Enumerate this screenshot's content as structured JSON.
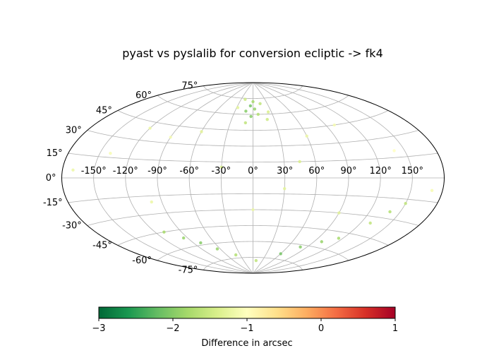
{
  "chart_data": {
    "type": "scatter",
    "projection": "aitoff",
    "title": "pyast vs pyslalib for conversion ecliptic -> fk4",
    "xlabel": "",
    "ylabel": "",
    "x_ticks": [
      "-150°",
      "-120°",
      "-90°",
      "-60°",
      "-30°",
      "0°",
      "30°",
      "60°",
      "90°",
      "120°",
      "150°"
    ],
    "y_ticks": [
      "-75°",
      "-60°",
      "-45°",
      "-30°",
      "-15°",
      "0°",
      "15°",
      "30°",
      "45°",
      "60°",
      "75°"
    ],
    "grid": true,
    "colorbar": {
      "label": "Difference in arcsec",
      "min": -3,
      "max": 1,
      "ticks": [
        "−3",
        "−2",
        "−1",
        "0",
        "1"
      ],
      "colormap": "RdYlGn_r",
      "stops": [
        "#006837",
        "#1a9850",
        "#66bd63",
        "#a6d96a",
        "#d9ef8b",
        "#ffffbf",
        "#fee08b",
        "#fdae61",
        "#f46d43",
        "#d73027",
        "#a50026"
      ]
    },
    "series": [
      {
        "points": [
          {
            "lon": 0,
            "lat": 72,
            "diff": -1.8
          },
          {
            "lon": -5,
            "lat": 68,
            "diff": -2.1
          },
          {
            "lon": -12,
            "lat": 63,
            "diff": -2.0
          },
          {
            "lon": 3,
            "lat": 65,
            "diff": -1.9
          },
          {
            "lon": 8,
            "lat": 60,
            "diff": -1.7
          },
          {
            "lon": -3,
            "lat": 58,
            "diff": -2.0
          },
          {
            "lon": 15,
            "lat": 70,
            "diff": -1.6
          },
          {
            "lon": -20,
            "lat": 74,
            "diff": -1.5
          },
          {
            "lon": -28,
            "lat": 66,
            "diff": -1.3
          },
          {
            "lon": 25,
            "lat": 62,
            "diff": -1.4
          },
          {
            "lon": 20,
            "lat": 55,
            "diff": -1.5
          },
          {
            "lon": -10,
            "lat": 52,
            "diff": -1.6
          },
          {
            "lon": -120,
            "lat": 40,
            "diff": -1.2
          },
          {
            "lon": -90,
            "lat": 35,
            "diff": -1.1
          },
          {
            "lon": -60,
            "lat": 42,
            "diff": -1.3
          },
          {
            "lon": 60,
            "lat": 38,
            "diff": -1.2
          },
          {
            "lon": 100,
            "lat": 45,
            "diff": -1.1
          },
          {
            "lon": 140,
            "lat": 20,
            "diff": -1.0
          },
          {
            "lon": -140,
            "lat": 18,
            "diff": -1.1
          },
          {
            "lon": -170,
            "lat": 5,
            "diff": -1.2
          },
          {
            "lon": 170,
            "lat": -8,
            "diff": -1.1
          },
          {
            "lon": -100,
            "lat": -20,
            "diff": -1.2
          },
          {
            "lon": 90,
            "lat": -30,
            "diff": -1.3
          },
          {
            "lon": 130,
            "lat": -35,
            "diff": -1.6
          },
          {
            "lon": 140,
            "lat": -25,
            "diff": -1.7
          },
          {
            "lon": 150,
            "lat": -18,
            "diff": -1.6
          },
          {
            "lon": 115,
            "lat": -50,
            "diff": -1.8
          },
          {
            "lon": 100,
            "lat": -55,
            "diff": -1.9
          },
          {
            "lon": 80,
            "lat": -62,
            "diff": -2.0
          },
          {
            "lon": 60,
            "lat": -70,
            "diff": -2.1
          },
          {
            "lon": -110,
            "lat": -45,
            "diff": -1.8
          },
          {
            "lon": -95,
            "lat": -52,
            "diff": -1.9
          },
          {
            "lon": -80,
            "lat": -58,
            "diff": -2.0
          },
          {
            "lon": -65,
            "lat": -65,
            "diff": -1.9
          },
          {
            "lon": -40,
            "lat": -72,
            "diff": -1.7
          },
          {
            "lon": 10,
            "lat": -78,
            "diff": -1.6
          },
          {
            "lon": 30,
            "lat": -10,
            "diff": -1.3
          },
          {
            "lon": -30,
            "lat": 10,
            "diff": -1.4
          },
          {
            "lon": 0,
            "lat": -30,
            "diff": -1.2
          },
          {
            "lon": 45,
            "lat": 15,
            "diff": -1.4
          }
        ]
      }
    ]
  }
}
